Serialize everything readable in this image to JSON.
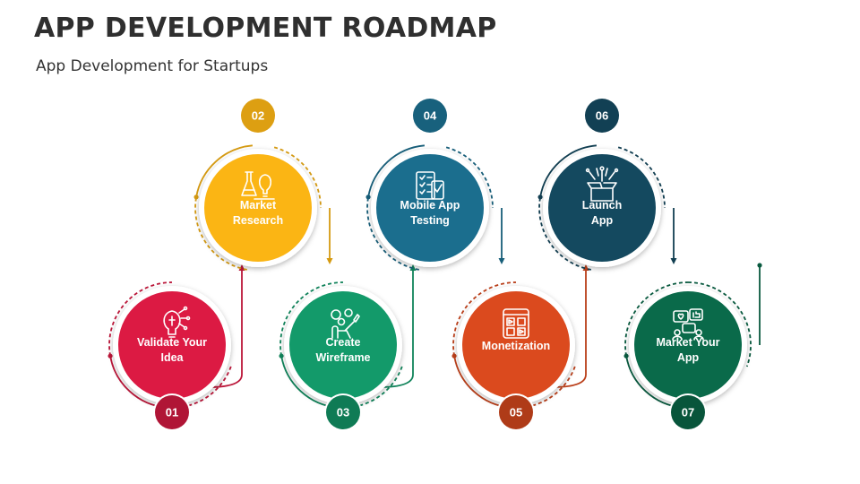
{
  "header": {
    "title": "APP DEVELOPMENT ROADMAP",
    "subtitle": "App Development for Startups"
  },
  "steps": [
    {
      "number": "01",
      "label_lines": [
        "Validate Your",
        "Idea"
      ],
      "color": "#DC1A43",
      "icon": "lightbulb-circuit-icon"
    },
    {
      "number": "02",
      "label_lines": [
        "Market",
        "Research"
      ],
      "color": "#FBB514",
      "icon": "lab-flask-bulb-icon"
    },
    {
      "number": "03",
      "label_lines": [
        "Create",
        "Wireframe"
      ],
      "color": "#139A6A",
      "icon": "designer-gears-icon"
    },
    {
      "number": "04",
      "label_lines": [
        "Mobile App",
        "Testing"
      ],
      "color": "#1B6E8E",
      "icon": "checklist-test-icon"
    },
    {
      "number": "05",
      "label_lines": [
        "Monetization"
      ],
      "color": "#DB4A1E",
      "icon": "ad-grid-icon"
    },
    {
      "number": "06",
      "label_lines": [
        "Launch",
        "App"
      ],
      "color": "#14495F",
      "icon": "launch-box-icon"
    },
    {
      "number": "07",
      "label_lines": [
        "Market Your",
        "App"
      ],
      "color": "#0A6A4A",
      "icon": "social-media-icon"
    }
  ]
}
